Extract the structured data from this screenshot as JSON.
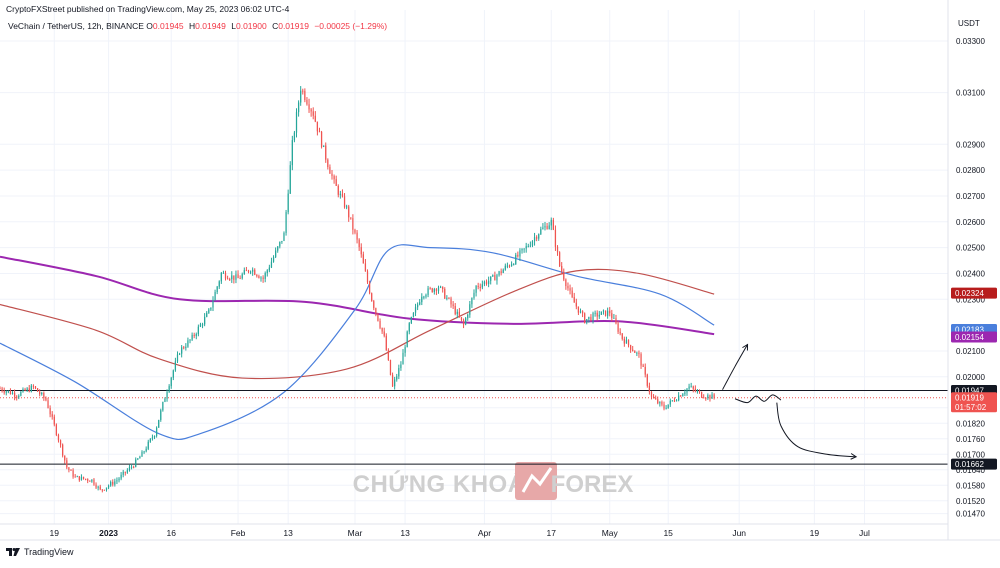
{
  "header": {
    "published": "CryptoFXStreet published on TradingView.com, May 25, 2023 06:02 UTC-4",
    "symbol": "VeChain / TetherUS, 12h, BINANCE",
    "ohlc": [
      {
        "label": "O",
        "value": "0.01945"
      },
      {
        "label": "H",
        "value": "0.01949"
      },
      {
        "label": "L",
        "value": "0.01900"
      },
      {
        "label": "C",
        "value": "0.01919"
      }
    ],
    "change": "−0.00025 (−1.29%)"
  },
  "footer": {
    "brand": "TradingView"
  },
  "watermark": {
    "left": "CHỨNG KHOÁN",
    "right": "FOREX"
  },
  "colors": {
    "up": "#26a69a",
    "down": "#ef5350",
    "ma_purple": "#9c27b0",
    "ma_red": "#c0504d",
    "ma_blue": "#4a7fdc",
    "line_black": "#131722",
    "badge_red": "#b71c1c"
  },
  "chart_data": {
    "type": "candlestick",
    "currency": "USDT",
    "y_range": [
      0.0143,
      0.0342
    ],
    "y_ticks": [
      "0.03300",
      "0.03100",
      "0.02900",
      "0.02800",
      "0.02700",
      "0.02600",
      "0.02500",
      "0.02400",
      "0.02300",
      "0.02100",
      "0.02000",
      "0.01880",
      "0.01820",
      "0.01760",
      "0.01700",
      "0.01640",
      "0.01580",
      "0.01520",
      "0.01470"
    ],
    "x_ticks": [
      {
        "label": "19",
        "day": 0
      },
      {
        "label": "2023",
        "day": 13
      },
      {
        "label": "16",
        "day": 28
      },
      {
        "label": "Feb",
        "day": 44
      },
      {
        "label": "13",
        "day": 56
      },
      {
        "label": "Mar",
        "day": 72
      },
      {
        "label": "13",
        "day": 84
      },
      {
        "label": "Apr",
        "day": 103
      },
      {
        "label": "17",
        "day": 119
      },
      {
        "label": "May",
        "day": 133
      },
      {
        "label": "15",
        "day": 147
      },
      {
        "label": "Jun",
        "day": 164
      },
      {
        "label": "19",
        "day": 182
      },
      {
        "label": "Jul",
        "day": 194
      }
    ],
    "x_domain": [
      -13,
      214
    ],
    "candle_anchors": [
      [
        -13,
        0.01955
      ],
      [
        -9,
        0.0193
      ],
      [
        -5,
        0.0196
      ],
      [
        -2,
        0.0191
      ],
      [
        1,
        0.0176
      ],
      [
        3,
        0.0165
      ],
      [
        5,
        0.0161
      ],
      [
        9,
        0.016
      ],
      [
        11,
        0.0156
      ],
      [
        15,
        0.016
      ],
      [
        19,
        0.0166
      ],
      [
        21,
        0.017
      ],
      [
        24,
        0.0178
      ],
      [
        27,
        0.0195
      ],
      [
        30,
        0.021
      ],
      [
        33,
        0.0215
      ],
      [
        37,
        0.0225
      ],
      [
        40,
        0.024
      ],
      [
        44,
        0.0238
      ],
      [
        47,
        0.0242
      ],
      [
        50,
        0.0238
      ],
      [
        53,
        0.0248
      ],
      [
        55,
        0.0255
      ],
      [
        57,
        0.029
      ],
      [
        59,
        0.0312
      ],
      [
        62,
        0.0302
      ],
      [
        65,
        0.0285
      ],
      [
        67,
        0.0275
      ],
      [
        70,
        0.0265
      ],
      [
        73,
        0.025
      ],
      [
        76,
        0.023
      ],
      [
        79,
        0.0215
      ],
      [
        81,
        0.0196
      ],
      [
        83,
        0.0205
      ],
      [
        85,
        0.022
      ],
      [
        88,
        0.0232
      ],
      [
        92,
        0.0235
      ],
      [
        95,
        0.0228
      ],
      [
        98,
        0.022
      ],
      [
        101,
        0.0235
      ],
      [
        105,
        0.0238
      ],
      [
        110,
        0.0245
      ],
      [
        113,
        0.025
      ],
      [
        116,
        0.0256
      ],
      [
        119,
        0.026
      ],
      [
        121,
        0.0243
      ],
      [
        124,
        0.023
      ],
      [
        127,
        0.0222
      ],
      [
        130,
        0.0224
      ],
      [
        133,
        0.0225
      ],
      [
        136,
        0.0215
      ],
      [
        140,
        0.0208
      ],
      [
        143,
        0.0192
      ],
      [
        146,
        0.0188
      ],
      [
        149,
        0.0192
      ],
      [
        152,
        0.0196
      ],
      [
        155,
        0.0193
      ],
      [
        158,
        0.0192
      ]
    ],
    "moving_averages": [
      {
        "color_key": "ma_purple",
        "points": [
          [
            -13,
            0.02465
          ],
          [
            10,
            0.0239
          ],
          [
            30,
            0.023
          ],
          [
            60,
            0.0229
          ],
          [
            85,
            0.02225
          ],
          [
            110,
            0.02205
          ],
          [
            135,
            0.02215
          ],
          [
            158,
            0.02165
          ]
        ]
      },
      {
        "color_key": "ma_red",
        "points": [
          [
            -13,
            0.0228
          ],
          [
            10,
            0.0218
          ],
          [
            25,
            0.0207
          ],
          [
            45,
            0.01995
          ],
          [
            70,
            0.0203
          ],
          [
            90,
            0.0218
          ],
          [
            110,
            0.0233
          ],
          [
            125,
            0.0241
          ],
          [
            140,
            0.024
          ],
          [
            158,
            0.0232
          ]
        ]
      },
      {
        "color_key": "ma_blue",
        "points": [
          [
            -13,
            0.0213
          ],
          [
            5,
            0.0198
          ],
          [
            25,
            0.0178
          ],
          [
            35,
            0.0178
          ],
          [
            55,
            0.0194
          ],
          [
            72,
            0.0226
          ],
          [
            80,
            0.0249
          ],
          [
            90,
            0.025
          ],
          [
            105,
            0.0248
          ],
          [
            125,
            0.0239
          ],
          [
            145,
            0.0232
          ],
          [
            158,
            0.022
          ]
        ]
      }
    ],
    "horizontal_lines": [
      {
        "value": 0.01947,
        "label": "0.01947",
        "style": "solid",
        "color_key": "line_black"
      },
      {
        "value": 0.01662,
        "label": "0.01662",
        "style": "solid",
        "color_key": "line_black"
      },
      {
        "value": 0.01919,
        "style": "dotted",
        "color_key": "down"
      }
    ],
    "price_badges": [
      {
        "value": 0.02324,
        "label": "0.02324",
        "color_key": "badge_red"
      },
      {
        "value": 0.02183,
        "label": "0.02183",
        "color_key": "ma_blue"
      },
      {
        "value": 0.02154,
        "label": "0.02154",
        "color_key": "ma_purple"
      },
      {
        "value": 0.01947,
        "label": "0.01947",
        "color_key": "line_black"
      },
      {
        "value": 0.01919,
        "label": "0.01919",
        "sub": "01:57:02",
        "color_key": "down"
      },
      {
        "value": 0.01662,
        "label": "0.01662",
        "color_key": "line_black"
      }
    ],
    "drawings": [
      {
        "kind": "arrow-up",
        "points": [
          [
            160,
            0.0195
          ],
          [
            163,
            0.0204
          ],
          [
            166,
            0.02125
          ]
        ]
      },
      {
        "kind": "squiggle",
        "points": [
          [
            163,
            0.01915
          ],
          [
            166,
            0.019
          ],
          [
            168,
            0.01925
          ],
          [
            170,
            0.01905
          ],
          [
            172,
            0.0193
          ],
          [
            174,
            0.0191
          ]
        ]
      },
      {
        "kind": "arrow-down",
        "points": [
          [
            173,
            0.019
          ],
          [
            174,
            0.0181
          ],
          [
            178,
            0.0173
          ],
          [
            185,
            0.017
          ],
          [
            192,
            0.0169
          ]
        ]
      }
    ]
  }
}
